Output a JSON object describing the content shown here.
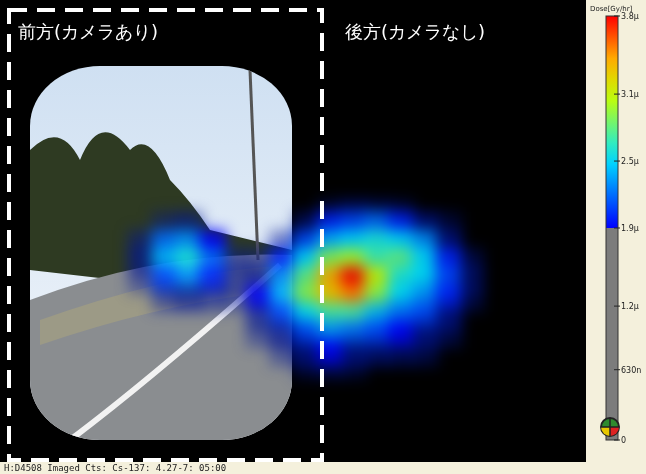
{
  "chart_data": {
    "type": "heatmap",
    "tick_labels": false,
    "annotations": [
      "前方(カメラあり)",
      "後方(カメラなし)"
    ],
    "footer": "H:D4508 Imaged Cts: Cs-137: 4.27-7: 05:00",
    "cells": [
      [
        null,
        null,
        null,
        null,
        null,
        null,
        null,
        null,
        null,
        1.4e-06,
        1.6e-06,
        1.5e-06,
        1.4e-06,
        null,
        null,
        null
      ],
      [
        null,
        null,
        1.5e-06,
        1.7e-06,
        null,
        null,
        null,
        null,
        1.6e-06,
        2e-06,
        2.1e-06,
        2.2e-06,
        2e-06,
        1.8e-06,
        1.4e-06,
        null
      ],
      [
        null,
        1.6e-06,
        2.2e-06,
        2.3e-06,
        1.9e-06,
        null,
        null,
        1.6e-06,
        2.1e-06,
        2.4e-06,
        2.5e-06,
        2.6e-06,
        2.5e-06,
        2.3e-06,
        1.8e-06,
        null
      ],
      [
        null,
        1.7e-06,
        2.4e-06,
        2.6e-06,
        2.2e-06,
        1.6e-06,
        1.5e-06,
        2e-06,
        2.5e-06,
        2.9e-06,
        3e-06,
        2.7e-06,
        2.8e-06,
        2.5e-06,
        2e-06,
        1.5e-06
      ],
      [
        null,
        1.5e-06,
        2.1e-06,
        2.3e-06,
        2e-06,
        1.6e-06,
        1.8e-06,
        2.3e-06,
        2.8e-06,
        3.4e-06,
        3.8e-06,
        3.1e-06,
        2.6e-06,
        2.5e-06,
        2.1e-06,
        1.6e-06
      ],
      [
        null,
        null,
        1.6e-06,
        1.8e-06,
        1.6e-06,
        1.5e-06,
        1.9e-06,
        2.4e-06,
        2.9e-06,
        3.3e-06,
        3.5e-06,
        2.9e-06,
        2.5e-06,
        2.3e-06,
        2e-06,
        1.5e-06
      ],
      [
        null,
        null,
        null,
        null,
        null,
        null,
        1.7e-06,
        2.1e-06,
        2.5e-06,
        2.7e-06,
        2.7e-06,
        2.4e-06,
        2.2e-06,
        2.1e-06,
        1.8e-06,
        null
      ],
      [
        null,
        null,
        null,
        null,
        null,
        null,
        1.5e-06,
        1.8e-06,
        2.1e-06,
        2.3e-06,
        2.2e-06,
        2.1e-06,
        1.9e-06,
        1.8e-06,
        1.5e-06,
        null
      ],
      [
        null,
        null,
        null,
        null,
        null,
        null,
        null,
        1.5e-06,
        1.8e-06,
        1.9e-06,
        1.8e-06,
        1.7e-06,
        1.6e-06,
        1.5e-06,
        null,
        null
      ],
      [
        null,
        null,
        null,
        null,
        null,
        null,
        null,
        null,
        1.4e-06,
        1.5e-06,
        1.4e-06,
        null,
        null,
        null,
        null,
        null
      ]
    ],
    "colorbar": {
      "title": "Dose[Gy/hr]",
      "range": [
        0,
        3.8e-06
      ],
      "colored_from": 1.9e-06,
      "ticks": [
        0,
        {
          "value": 6.3e-07,
          "label": "630n"
        },
        {
          "value": 1.2e-06,
          "label": "1.2μ"
        },
        {
          "value": 1.9e-06,
          "label": "1.9μ"
        },
        {
          "value": 2.5e-06,
          "label": "2.5μ"
        },
        {
          "value": 3.1e-06,
          "label": "3.1μ"
        },
        {
          "value": 3.8e-06,
          "label": "3.8μ"
        }
      ]
    }
  }
}
